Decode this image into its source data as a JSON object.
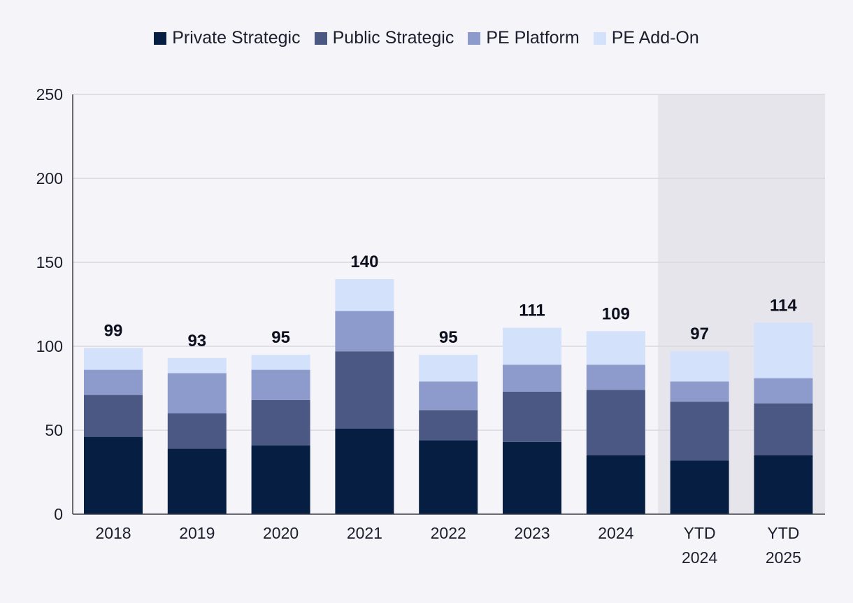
{
  "chart_data": {
    "type": "bar",
    "stacked": true,
    "categories": [
      [
        "2018"
      ],
      [
        "2019"
      ],
      [
        "2020"
      ],
      [
        "2021"
      ],
      [
        "2022"
      ],
      [
        "2023"
      ],
      [
        "2024"
      ],
      [
        "YTD",
        "2024"
      ],
      [
        "YTD",
        "2025"
      ]
    ],
    "highlighted_categories": [
      7,
      8
    ],
    "series": [
      {
        "name": "Private Strategic",
        "color": "#061e42",
        "values": [
          46,
          39,
          41,
          51,
          44,
          43,
          35,
          32,
          35
        ]
      },
      {
        "name": "Public Strategic",
        "color": "#4a5883",
        "values": [
          25,
          21,
          27,
          46,
          18,
          30,
          39,
          35,
          31
        ]
      },
      {
        "name": "PE Platform",
        "color": "#8c9bcb",
        "values": [
          15,
          24,
          18,
          24,
          17,
          16,
          15,
          12,
          15
        ]
      },
      {
        "name": "PE Add-On",
        "color": "#d4e1fb",
        "values": [
          13,
          9,
          9,
          19,
          16,
          22,
          20,
          18,
          33
        ]
      }
    ],
    "totals": [
      "99",
      "93",
      "95",
      "140",
      "95",
      "111",
      "109",
      "97",
      "114"
    ],
    "ylim": [
      0,
      250
    ],
    "yticks": [
      "0",
      "50",
      "100",
      "150",
      "200",
      "250"
    ],
    "grid": true,
    "legend_position": "top-center",
    "title": "",
    "xlabel": "",
    "ylabel": ""
  }
}
